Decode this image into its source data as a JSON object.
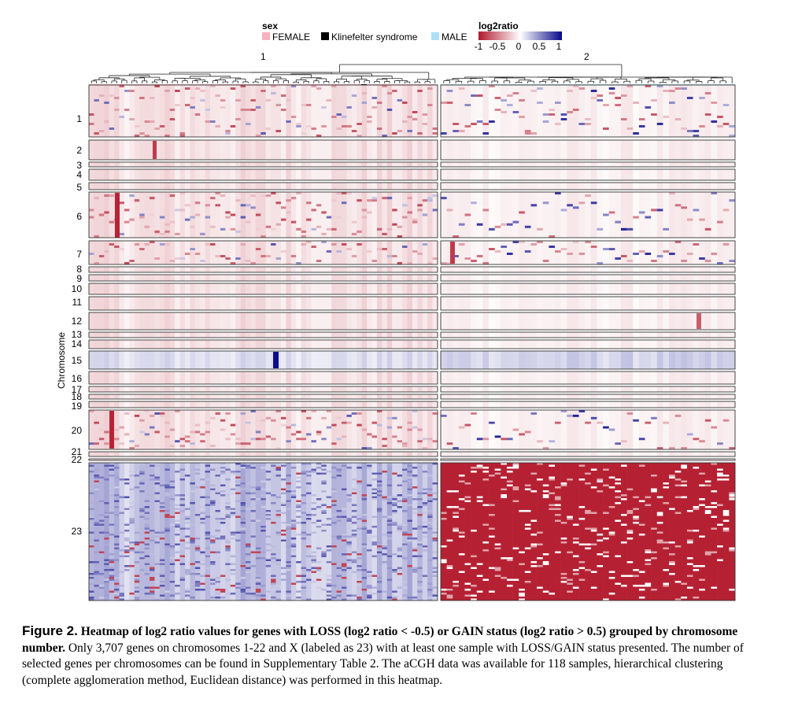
{
  "chart_data": {
    "type": "heatmap",
    "ylabel": "Chromosome",
    "cluster_labels": [
      "1",
      "2"
    ],
    "sex_legend": {
      "title": "sex",
      "entries": [
        {
          "label": "FEMALE",
          "color": "#f7b3bd"
        },
        {
          "label": "Klinefelter syndrome",
          "color": "#000000"
        },
        {
          "label": "MALE",
          "color": "#aee0f5"
        }
      ]
    },
    "color_legend": {
      "title": "log2ratio",
      "tick_labels": [
        "-1",
        "-0.5",
        "0",
        "0.5",
        "1"
      ],
      "range": [
        -1,
        1
      ],
      "low_color": "#b2182b",
      "mid_color": "#ffffff",
      "high_color": "#08088a"
    },
    "chromosomes": [
      "1",
      "2",
      "3",
      "4",
      "5",
      "6",
      "7",
      "8",
      "9",
      "10",
      "11",
      "12",
      "13",
      "14",
      "15",
      "16",
      "17",
      "18",
      "19",
      "20",
      "21",
      "22",
      "23"
    ],
    "clusters": [
      {
        "name": "1",
        "sex": "FEMALE",
        "klinefelter_sample": true
      },
      {
        "name": "2",
        "sex": "MALE"
      }
    ]
  },
  "caption": {
    "label": "Figure 2.",
    "title": "Heatmap of log2 ratio values for genes with LOSS (log2 ratio < -0.5) or GAIN status (log2 ratio > 0.5) grouped by chromosome number.",
    "body": "Only 3,707 genes on chromosomes 1-22 and X (labeled as 23) with at least one sample with LOSS/GAIN status presented. The number of selected genes per chromosomes can be found in Supplementary Table 2. The aCGH data was available for 118 samples, hierarchical clustering (complete agglomeration method, Euclidean distance) was performed in this heatmap."
  }
}
